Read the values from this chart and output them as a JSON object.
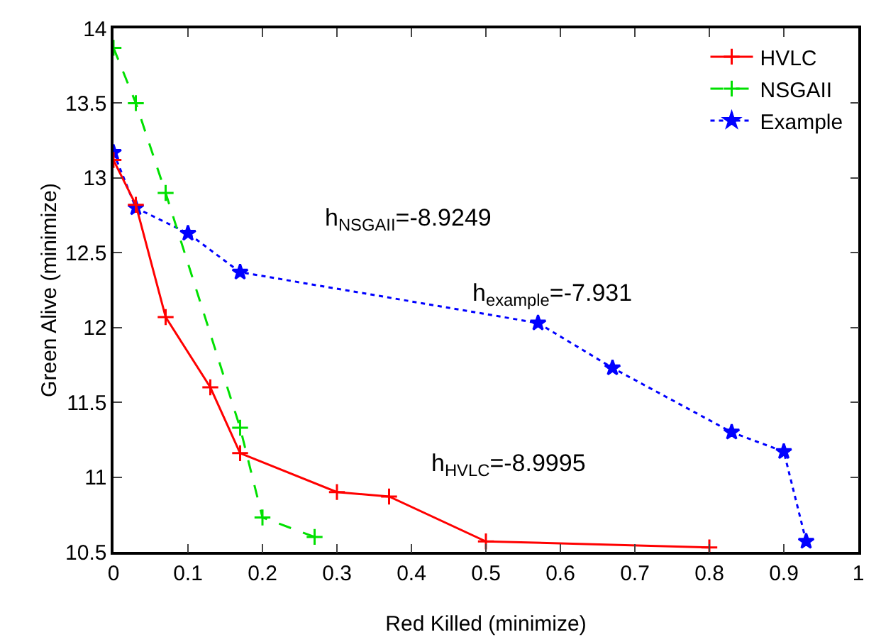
{
  "chart_data": {
    "type": "line",
    "xlabel": "Red Killed (minimize)",
    "ylabel": "Green Alive (minimize)",
    "xlim": [
      0,
      1
    ],
    "xticks": [
      0,
      0.1,
      0.2,
      0.3,
      0.4,
      0.5,
      0.6,
      0.7,
      0.8,
      0.9,
      1
    ],
    "ylim": [
      10.5,
      14
    ],
    "yticks": [
      10.5,
      11,
      11.5,
      12,
      12.5,
      13,
      13.5,
      14
    ],
    "grid": false,
    "legend": "top right",
    "series": [
      {
        "name": "HVLC",
        "color": "#ff0000",
        "marker": "cross",
        "line_style": "solid",
        "x": [
          0,
          0.03,
          0.07,
          0.13,
          0.17,
          0.3,
          0.37,
          0.5,
          0.8
        ],
        "values": [
          13.12,
          12.82,
          12.07,
          11.6,
          11.16,
          10.9,
          10.87,
          10.57,
          10.53
        ]
      },
      {
        "name": "NSGAII",
        "color": "#00e000",
        "marker": "cross",
        "line_style": "dashed",
        "x": [
          0,
          0.03,
          0.07,
          0.17,
          0.2,
          0.27
        ],
        "values": [
          13.87,
          13.5,
          12.9,
          11.33,
          10.73,
          10.6
        ]
      },
      {
        "name": "Example",
        "color": "#0000ff",
        "marker": "star",
        "line_style": "dotted",
        "x": [
          0,
          0.03,
          0.1,
          0.17,
          0.57,
          0.67,
          0.83,
          0.9,
          0.93
        ],
        "values": [
          13.17,
          12.8,
          12.63,
          12.37,
          12.03,
          11.73,
          11.3,
          11.17,
          10.57
        ]
      }
    ],
    "annotations": [
      "h$_{NSGAII}$=-8.9249",
      "h$_{example}$=-7.931",
      "h$_{HVLC}$=-8.9995"
    ]
  }
}
